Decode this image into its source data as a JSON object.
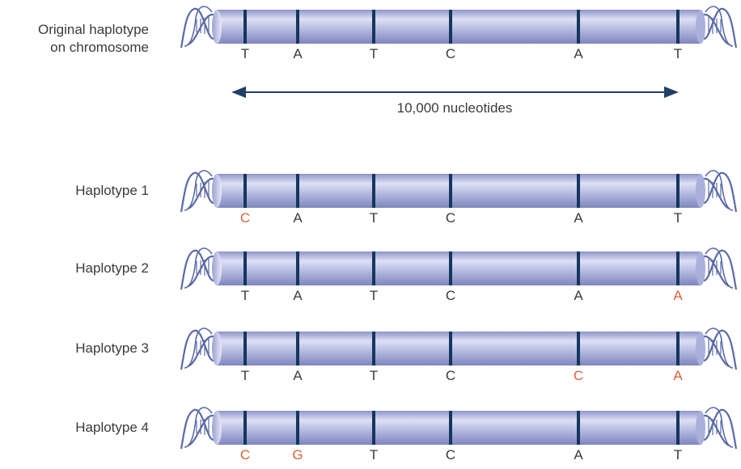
{
  "colors": {
    "text": "#3a3a3a",
    "mutation": "#d9613a",
    "marker": "#15365e",
    "arrow": "#1f3f66",
    "dna": "#5b6aa6"
  },
  "original": {
    "label_line1": "Original haplotype",
    "label_line2": "on chromosome",
    "bases": [
      {
        "letter": "T",
        "mutated": false
      },
      {
        "letter": "A",
        "mutated": false
      },
      {
        "letter": "T",
        "mutated": false
      },
      {
        "letter": "C",
        "mutated": false
      },
      {
        "letter": "A",
        "mutated": false
      },
      {
        "letter": "T",
        "mutated": false
      }
    ]
  },
  "span_label": "10,000 nucleotides",
  "haplotypes": [
    {
      "label": "Haplotype 1",
      "bases": [
        {
          "letter": "C",
          "mutated": true
        },
        {
          "letter": "A",
          "mutated": false
        },
        {
          "letter": "T",
          "mutated": false
        },
        {
          "letter": "C",
          "mutated": false
        },
        {
          "letter": "A",
          "mutated": false
        },
        {
          "letter": "T",
          "mutated": false
        }
      ]
    },
    {
      "label": "Haplotype 2",
      "bases": [
        {
          "letter": "T",
          "mutated": false
        },
        {
          "letter": "A",
          "mutated": false
        },
        {
          "letter": "T",
          "mutated": false
        },
        {
          "letter": "C",
          "mutated": false
        },
        {
          "letter": "A",
          "mutated": false
        },
        {
          "letter": "A",
          "mutated": true
        }
      ]
    },
    {
      "label": "Haplotype 3",
      "bases": [
        {
          "letter": "T",
          "mutated": false
        },
        {
          "letter": "A",
          "mutated": false
        },
        {
          "letter": "T",
          "mutated": false
        },
        {
          "letter": "C",
          "mutated": false
        },
        {
          "letter": "C",
          "mutated": true
        },
        {
          "letter": "A",
          "mutated": true
        }
      ]
    },
    {
      "label": "Haplotype 4",
      "bases": [
        {
          "letter": "C",
          "mutated": true
        },
        {
          "letter": "G",
          "mutated": true
        },
        {
          "letter": "T",
          "mutated": false
        },
        {
          "letter": "C",
          "mutated": false
        },
        {
          "letter": "A",
          "mutated": false
        },
        {
          "letter": "T",
          "mutated": false
        }
      ]
    }
  ]
}
